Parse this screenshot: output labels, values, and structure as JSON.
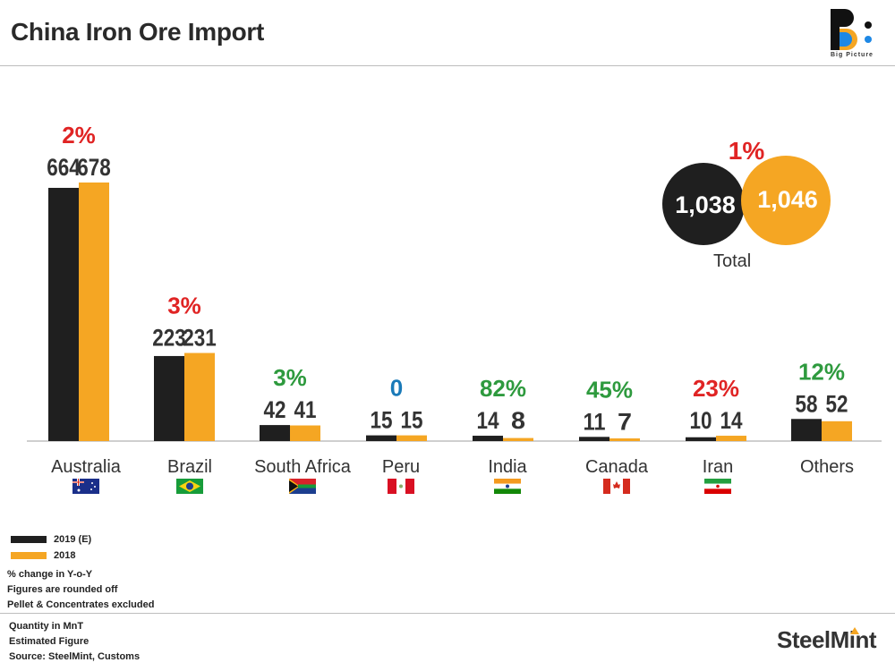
{
  "title": "China Iron Ore Import",
  "logo_text": "Big Picture",
  "colors": {
    "series_2019": "#1f1f1f",
    "series_2018": "#f5a623",
    "increase": "#2e9a3e",
    "decrease": "#e02424",
    "no_change": "#1a7ab8",
    "axis": "#bfbfbf"
  },
  "chart_data": {
    "type": "bar",
    "categories": [
      "Australia",
      "Brazil",
      "South Africa",
      "Peru",
      "India",
      "Canada",
      "Iran",
      "Others"
    ],
    "series": [
      {
        "name": "2019 (E)",
        "values": [
          664,
          223,
          42,
          15,
          14,
          11,
          10,
          58
        ]
      },
      {
        "name": "2018",
        "values": [
          678,
          231,
          41,
          15,
          8,
          7,
          14,
          52
        ]
      }
    ],
    "value_labels": {
      "2019": [
        "664",
        "223",
        "42",
        "15",
        "14",
        "11",
        "10",
        "58"
      ],
      "2018": [
        "678",
        "231",
        "41",
        "15",
        "8",
        "7",
        "14",
        "52"
      ]
    },
    "change_labels": [
      "2%",
      "3%",
      "3%",
      "0",
      "82%",
      "45%",
      "23%",
      "12%"
    ],
    "change_direction": [
      "decrease",
      "decrease",
      "increase",
      "none",
      "increase",
      "increase",
      "decrease",
      "increase"
    ],
    "flags": [
      "australia-flag-icon",
      "brazil-flag-icon",
      "south-africa-flag-icon",
      "peru-flag-icon",
      "india-flag-icon",
      "canada-flag-icon",
      "iran-flag-icon",
      null
    ],
    "total": {
      "values": [
        1038,
        1046
      ],
      "value_labels": [
        "1,038",
        "1,046"
      ],
      "change_label": "1%",
      "change_direction": "decrease",
      "label": "Total"
    },
    "legend_placement": "bottom-left",
    "grid": false
  },
  "legend": [
    {
      "label": "2019 (E)",
      "color": "#1f1f1f"
    },
    {
      "label": "2018",
      "color": "#f5a623"
    }
  ],
  "notes": [
    "% change in Y-o-Y",
    "Figures are rounded off",
    "Pellet & Concentrates excluded"
  ],
  "footer": [
    "Quantity in MnT",
    "Estimated Figure",
    "Source: SteelMint, Customs"
  ],
  "brand": "SteelMint"
}
